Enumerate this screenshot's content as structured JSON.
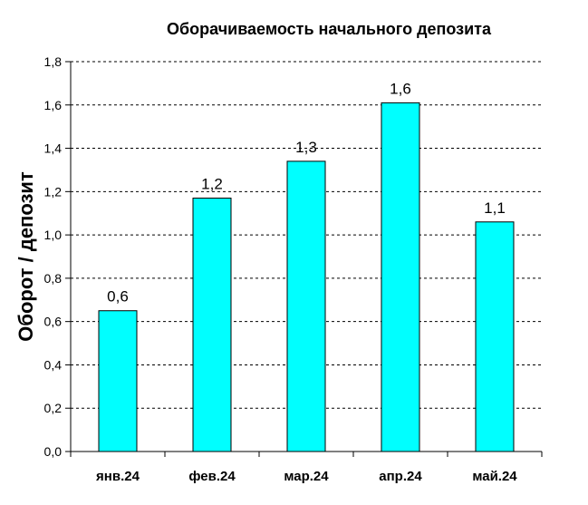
{
  "chart_data": {
    "type": "bar",
    "title": "Оборачиваемость начального депозита",
    "xlabel": "",
    "ylabel": "Оборот / депозит",
    "categories": [
      "янв.24",
      "фев.24",
      "мар.24",
      "апр.24",
      "май.24"
    ],
    "values": [
      0.65,
      1.17,
      1.34,
      1.61,
      1.06
    ],
    "data_labels": [
      "0,6",
      "1,2",
      "1,3",
      "1,6",
      "1,1"
    ],
    "yticks": [
      "0,0",
      "0,2",
      "0,4",
      "0,6",
      "0,8",
      "1,0",
      "1,2",
      "1,4",
      "1,6",
      "1,8"
    ],
    "ylim": [
      0,
      1.8
    ],
    "grid": "horizontal dashed",
    "legend": "none",
    "colors": {
      "bar_fill": "#00FFFF",
      "bar_stroke": "#000000",
      "grid": "#000000",
      "axis": "#000000"
    }
  }
}
